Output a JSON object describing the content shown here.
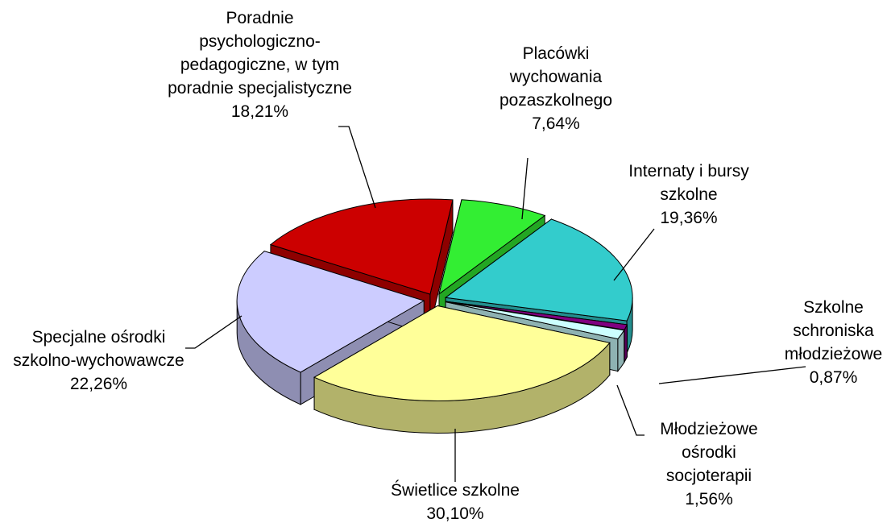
{
  "chart_data": {
    "type": "pie",
    "categories": [
      "Poradnie psychologiczno-pedagogiczne, w tym poradnie specjalistyczne",
      "Placówki wychowania pozaszkolnego",
      "Internaty i bursy szkolne",
      "Szkolne schroniska młodzieżowe",
      "Młodzieżowe ośrodki socjoterapii",
      "Świetlice szkolne",
      "Specjalne ośrodki szkolno-wychowawcze"
    ],
    "values": [
      18.21,
      7.64,
      19.36,
      0.87,
      1.56,
      30.1,
      22.26
    ],
    "value_labels": [
      "18,21%",
      "7,64%",
      "19,36%",
      "0,87%",
      "1,56%",
      "30,10%",
      "22,26%"
    ],
    "colors": [
      "#cc0000",
      "#33ee33",
      "#33cccc",
      "#800080",
      "#ccffff",
      "#ffff99",
      "#ccccff"
    ]
  }
}
